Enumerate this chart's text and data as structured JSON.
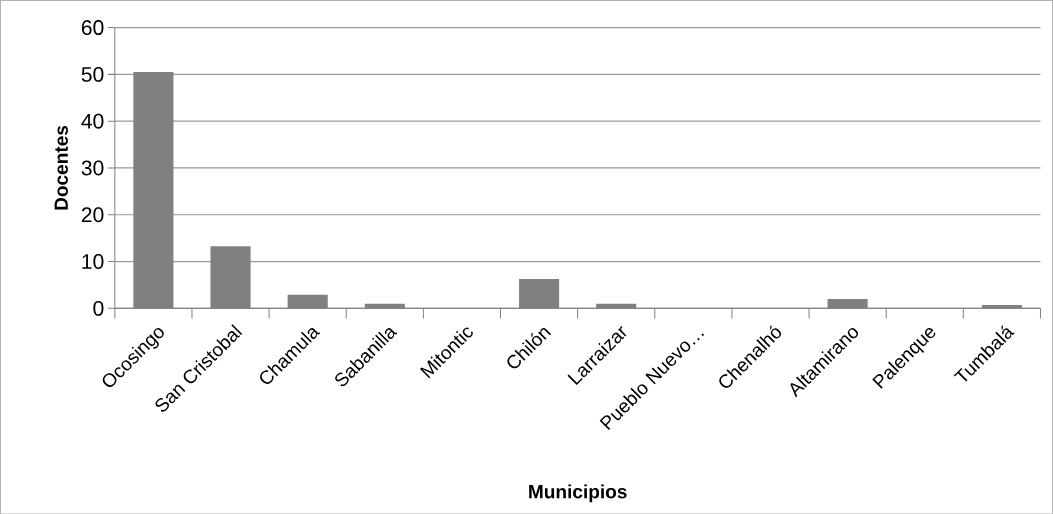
{
  "chart_data": {
    "type": "bar",
    "xlabel": "Municipios",
    "ylabel": "Docentes",
    "categories": [
      "Ocosingo",
      "San Cristobal",
      "Chamula",
      "Sabanilla",
      "Mitontic",
      "Chilón",
      "Larraizar",
      "Pueblo Nuevo…",
      "Chenalhó",
      "Altamirano",
      "Palenque",
      "Tumbalá"
    ],
    "values": [
      50.5,
      13.3,
      2.9,
      1,
      0,
      6.3,
      1,
      0,
      0,
      2,
      0,
      0.7
    ],
    "color": "#808080",
    "ylim": [
      0,
      60
    ],
    "yticks": [
      0,
      10,
      20,
      30,
      40,
      50,
      60
    ],
    "grid": "y"
  }
}
